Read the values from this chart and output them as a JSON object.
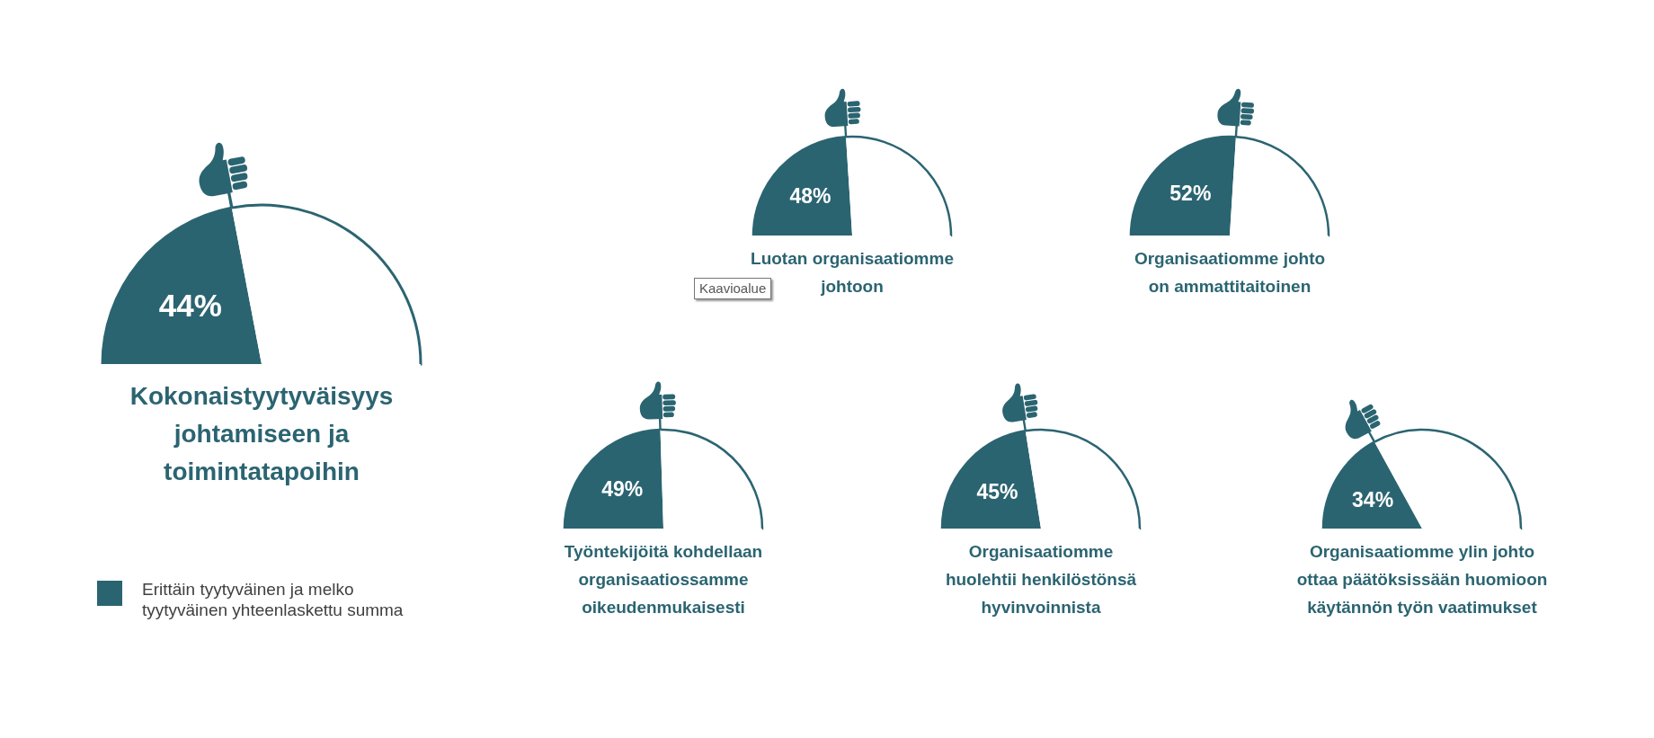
{
  "chart_data": [
    {
      "type": "pie",
      "title": "Kokonaistyytyväisyys\njohtamiseen ja\ntoimintatapoihin",
      "categories": [
        "Erittäin tyytyväinen ja melko tyytyväinen yhteenlaskettu summa",
        null
      ],
      "values": [
        44,
        56
      ],
      "colors": [
        "#2b6471",
        "#ffffff"
      ],
      "value_labels": [
        "44%",
        null
      ],
      "legend": "bottom"
    },
    {
      "type": "pie",
      "title": "Luotan organisaatiomme\njohtoon",
      "categories": [
        null,
        null
      ],
      "values": [
        48,
        52
      ],
      "colors": [
        "#2b6471",
        "#ffffff"
      ],
      "value_labels": [
        "48%",
        null
      ],
      "annotations": [
        "Kaavioalue"
      ]
    },
    {
      "type": "pie",
      "title": "Organisaatiomme johto\non ammattitaitoinen",
      "categories": [
        null,
        null
      ],
      "values": [
        52,
        48
      ],
      "colors": [
        "#2b6471",
        "#ffffff"
      ],
      "value_labels": [
        "52%",
        null
      ]
    },
    {
      "type": "pie",
      "title": "Työntekijöitä kohdellaan\norganisaatiossamme\noikeudenmukaisesti",
      "categories": [
        null,
        null
      ],
      "values": [
        49,
        51
      ],
      "colors": [
        "#2b6471",
        "#ffffff"
      ],
      "value_labels": [
        "49%",
        null
      ]
    },
    {
      "type": "pie",
      "title": "Organisaatiomme\nhuolehtii henkilöstönsä\nhyvinvoinnista",
      "categories": [
        null,
        null
      ],
      "values": [
        45,
        55
      ],
      "colors": [
        "#2b6471",
        "#ffffff"
      ],
      "value_labels": [
        "45%",
        null
      ]
    },
    {
      "type": "pie",
      "title": "Organisaatiomme ylin johto\nottaa päätöksissään huomioon\nkäytännön työn vaatimukset",
      "categories": [
        null,
        null
      ],
      "values": [
        34,
        66
      ],
      "colors": [
        "#2b6471",
        "#ffffff"
      ],
      "value_labels": [
        "34%",
        null
      ]
    }
  ]
}
